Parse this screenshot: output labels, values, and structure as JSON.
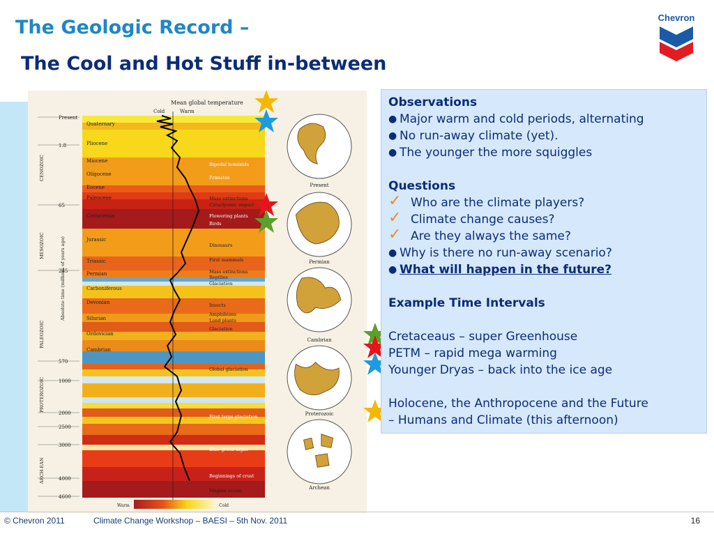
{
  "title": {
    "line1": "The Geologic Record –",
    "line2": "The Cool and Hot Stuff in-between"
  },
  "logo": {
    "text": "Chevron"
  },
  "chart": {
    "heading": "Mean global temperature",
    "cold_label": "Cold",
    "warm_label": "Warm",
    "axis_label": "Absolute time (millions of years ago)",
    "legend_warm": "Warm",
    "legend_cold": "Cold",
    "eras": [
      "CENOZOIC",
      "MESOZOIC",
      "PALEOZOIC",
      "PROTEROZOIC",
      "ARCH-EAN"
    ],
    "time_ticks": [
      "Present",
      "1.8",
      "65",
      "245",
      "570",
      "1000",
      "2000",
      "2500",
      "3000",
      "4000",
      "4600"
    ],
    "periods": [
      "Quaternary",
      "Pliocene",
      "Miocene",
      "Oligocene",
      "Eocene",
      "Paleocene",
      "Cretaceous",
      "Jurassic",
      "Triassic",
      "Permian",
      "Carboniferous",
      "Devonian",
      "Silurian",
      "Ordovician",
      "Cambrian"
    ],
    "events": [
      "Bipedal hominids",
      "Primates",
      "Mass extinctions",
      "Cataclysmic impact",
      "Flowering plants",
      "Birds",
      "Dinosaurs",
      "First mammals",
      "Mass extinctions",
      "Reptiles",
      "Glaciation",
      "Insects",
      "Amphibians",
      "Land plants",
      "Glaciation",
      "Global glaciation",
      "First large glaciation",
      "Blue-green algae",
      "Beginnings of crust",
      "Magma ocean"
    ],
    "globes": [
      "Present",
      "Permian",
      "Cambrian",
      "Proterozoic",
      "Archean"
    ]
  },
  "panel": {
    "observations_heading": "Observations",
    "observations": [
      "Major warm and cold periods, alternating",
      "No run-away climate (yet).",
      "The younger the more squiggles"
    ],
    "questions_heading": "Questions",
    "questions_checked": [
      "Who are the climate players?",
      "Climate change causes?",
      "Are they always the same?"
    ],
    "questions_bulleted": [
      "Why is there no run-away scenario?"
    ],
    "question_emphasis": "What will happen in the future?",
    "examples_heading": "Example Time Intervals",
    "examples": [
      "Cretaceaus – super Greenhouse",
      "PETM – rapid mega warming",
      "Younger Dryas – back into the ice age"
    ],
    "closing_line1": "Holocene, the Anthropocene and the Future",
    "closing_line2": "– Humans and Climate (this afternoon)"
  },
  "stars": {
    "colors": [
      "#f5b800",
      "#1e9be0",
      "#e8141c",
      "#5aa02c",
      "#5aa02c",
      "#e8141c",
      "#1e9be0",
      "#f5b800"
    ]
  },
  "footer": {
    "copyright": "© Chevron 2011",
    "workshop": "Climate Change Workshop – BAESI – 5th Nov. 2011",
    "page": "16"
  }
}
